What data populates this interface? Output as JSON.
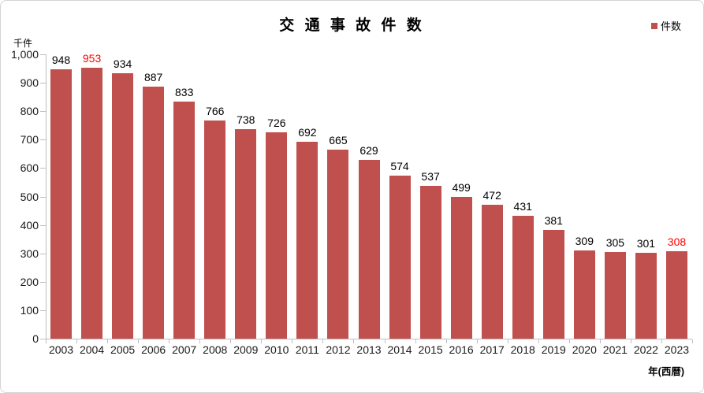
{
  "chart_data": {
    "type": "bar",
    "title": "交 通 事 故 件 数",
    "legend_label": "件数",
    "unit_label": "千件",
    "xlabel": "年(西暦)",
    "categories": [
      "2003",
      "2004",
      "2005",
      "2006",
      "2007",
      "2008",
      "2009",
      "2010",
      "2011",
      "2012",
      "2013",
      "2014",
      "2015",
      "2016",
      "2017",
      "2018",
      "2019",
      "2020",
      "2021",
      "2022",
      "2023"
    ],
    "values": [
      948,
      953,
      934,
      887,
      833,
      766,
      738,
      726,
      692,
      665,
      629,
      574,
      537,
      499,
      472,
      431,
      381,
      309,
      305,
      301,
      308
    ],
    "highlighted_indices": [
      1,
      20
    ],
    "yticks": [
      "0",
      "100",
      "200",
      "300",
      "400",
      "500",
      "600",
      "700",
      "800",
      "900",
      "1,000"
    ],
    "ylim": [
      0,
      1000
    ],
    "ytick_step": 100,
    "grid": false,
    "legend_position": "top-right",
    "colors": {
      "bar": "#c0504d",
      "value_label": "#000000",
      "highlight_label": "#ff0000",
      "axis": "#bfbfbf",
      "border": "#d4d4d4"
    }
  }
}
